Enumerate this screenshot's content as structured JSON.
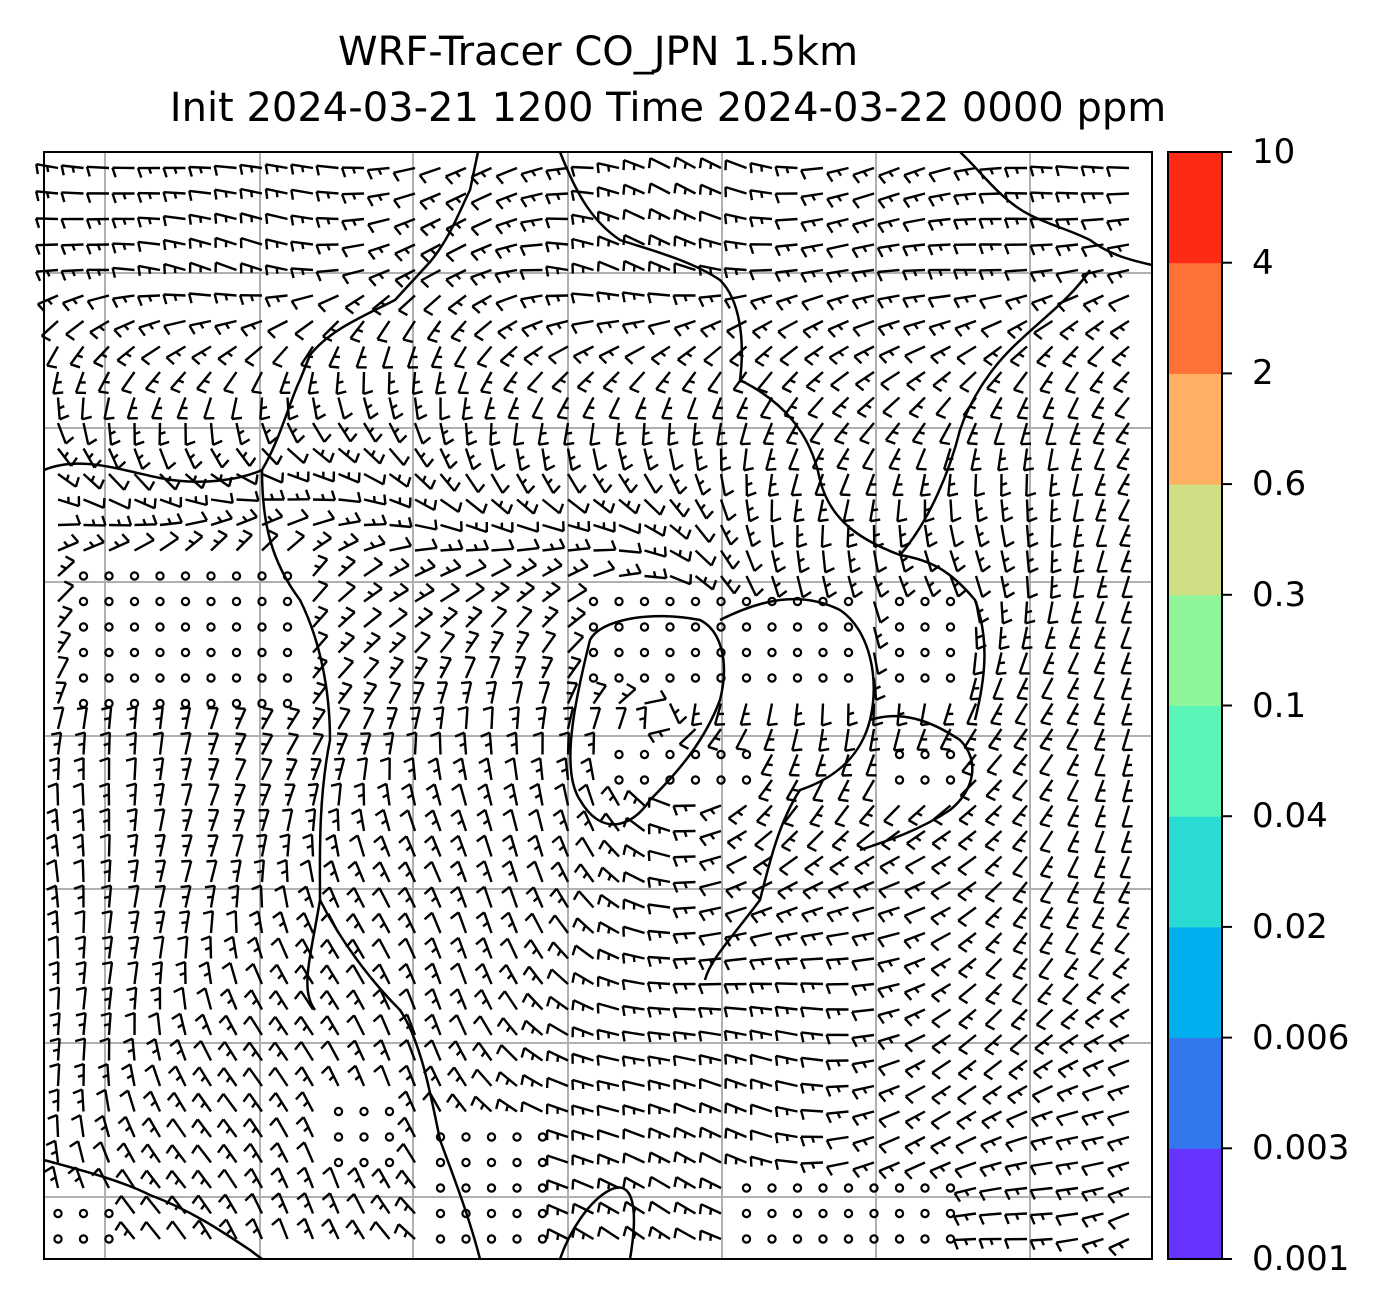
{
  "title": {
    "line1": "WRF-Tracer CO_JPN 1.5km",
    "line2": "Init 2024-03-21 1200 Time 2024-03-22 0000 ppm"
  },
  "colorbar": {
    "levels": [
      "0.001",
      "0.003",
      "0.006",
      "0.02",
      "0.04",
      "0.1",
      "0.3",
      "0.6",
      "2",
      "4",
      "10"
    ],
    "colors": [
      "#6633ff",
      "#3377ee",
      "#00b0ee",
      "#2adbd4",
      "#5cf5b8",
      "#8ef59a",
      "#d0de84",
      "#ffb062",
      "#ff7236",
      "#ff2a16"
    ]
  },
  "map": {
    "grid": "on",
    "grid_color": "#b0b0b0",
    "overlay": "wind barbs and calm-wind circles over coastlines"
  }
}
